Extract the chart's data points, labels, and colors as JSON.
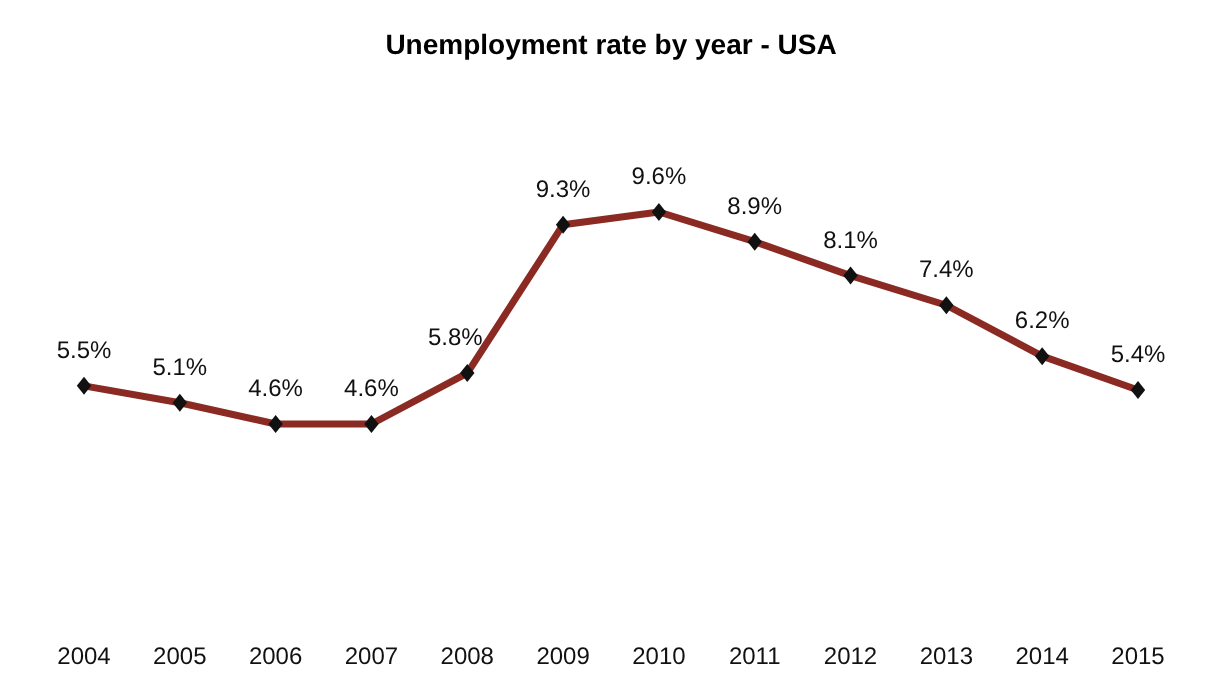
{
  "chart_data": {
    "type": "line",
    "title": "Unemployment rate by year - USA",
    "categories": [
      "2004",
      "2005",
      "2006",
      "2007",
      "2008",
      "2009",
      "2010",
      "2011",
      "2012",
      "2013",
      "2014",
      "2015"
    ],
    "series": [
      {
        "color": "#8b2a22",
        "values": [
          5.5,
          5.1,
          4.6,
          4.6,
          5.8,
          9.3,
          9.6,
          8.9,
          8.1,
          7.4,
          6.2,
          5.4
        ],
        "value_labels": [
          "5.5%",
          "5.1%",
          "4.6%",
          "4.6%",
          "5.8%",
          "9.3%",
          "9.6%",
          "8.9%",
          "8.1%",
          "7.4%",
          "6.2%",
          "5.4%"
        ]
      }
    ],
    "marker": "diamond",
    "line_style": "solid"
  }
}
